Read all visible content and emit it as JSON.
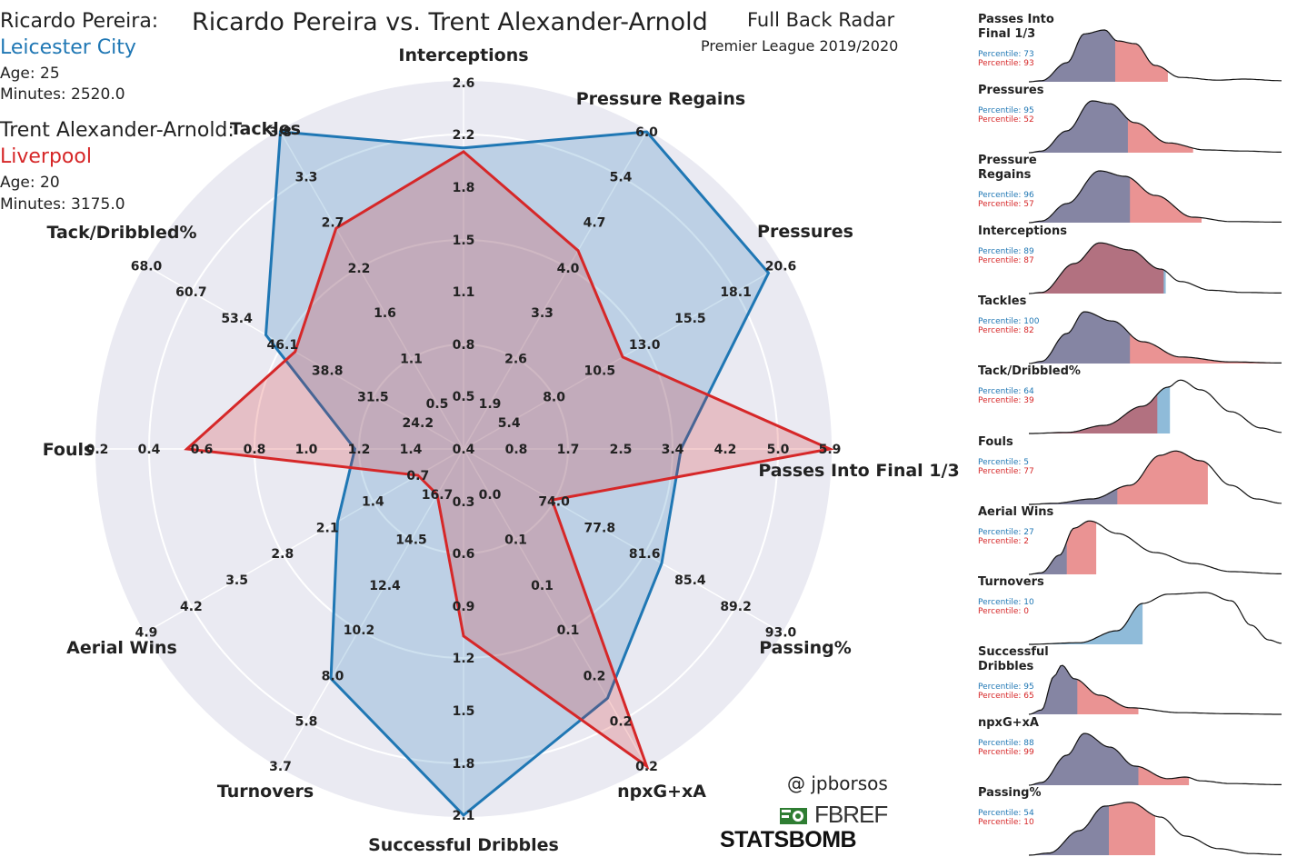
{
  "header": {
    "title": "Ricardo Pereira vs. Trent Alexander-Arnold",
    "subtitle": "Full Back Radar",
    "competition": "Premier League 2019/2020"
  },
  "players": [
    {
      "name": "Ricardo Pereira:",
      "team": "Leicester City",
      "age": "Age: 25",
      "minutes": "Minutes: 2520.0",
      "color": "#1f77b4"
    },
    {
      "name": "Trent Alexander-Arnold:",
      "team": "Liverpool",
      "age": "Age: 20",
      "minutes": "Minutes: 3175.0",
      "color": "#d62728"
    }
  ],
  "credits": {
    "handle": "@ jpborsos",
    "fbref": "FBREF",
    "statsbomb": "STATSBOMB"
  },
  "chart_data": [
    {
      "type": "radar",
      "axes": [
        {
          "label": "Interceptions",
          "ticks": [
            "0.4",
            "0.5",
            "0.8",
            "1.1",
            "1.5",
            "1.8",
            "2.2",
            "2.6"
          ],
          "range": [
            0.1,
            2.6
          ]
        },
        {
          "label": "Pressure Regains",
          "ticks": [
            "1.9",
            "2.6",
            "3.3",
            "4.0",
            "4.7",
            "5.4",
            "6.0"
          ],
          "range": [
            1.2,
            6.0
          ]
        },
        {
          "label": "Pressures",
          "ticks": [
            "5.4",
            "8.0",
            "10.5",
            "13.0",
            "15.5",
            "18.1",
            "20.6"
          ],
          "range": [
            2.9,
            20.6
          ]
        },
        {
          "label": "Passes Into Final 1/3",
          "ticks": [
            "0.8",
            "1.7",
            "2.5",
            "3.4",
            "4.2",
            "5.0",
            "5.9"
          ],
          "range": [
            0.0,
            5.9
          ]
        },
        {
          "label": "Passing%",
          "ticks": [
            "74.0",
            "77.8",
            "81.6",
            "85.4",
            "89.2",
            "93.0"
          ],
          "range": [
            70.2,
            93.0
          ]
        },
        {
          "label": "npxG+xA",
          "ticks": [
            "0.0",
            "0.1",
            "0.1",
            "0.1",
            "0.2",
            "0.2",
            "0.2"
          ],
          "range": [
            0.0,
            0.24
          ]
        },
        {
          "label": "Successful Dribbles",
          "ticks": [
            "0.3",
            "0.6",
            "0.9",
            "1.2",
            "1.5",
            "1.8",
            "2.1"
          ],
          "range": [
            0.0,
            2.1
          ]
        },
        {
          "label": "Turnovers",
          "ticks": [
            "16.7",
            "14.5",
            "12.4",
            "10.2",
            "8.0",
            "5.8",
            "3.7"
          ],
          "range": [
            18.9,
            3.7
          ]
        },
        {
          "label": "Aerial Wins",
          "ticks": [
            "0.7",
            "1.4",
            "2.1",
            "2.8",
            "3.5",
            "4.2",
            "4.9"
          ],
          "range": [
            0.0,
            4.9
          ]
        },
        {
          "label": "Fouls",
          "ticks": [
            "1.4",
            "1.2",
            "1.0",
            "0.8",
            "0.6",
            "0.4",
            "0.2"
          ],
          "range": [
            1.6,
            0.2
          ]
        },
        {
          "label": "Tack/Dribbled%",
          "ticks": [
            "24.2",
            "31.5",
            "38.8",
            "46.1",
            "53.4",
            "60.7",
            "68.0"
          ],
          "range": [
            16.9,
            68.0
          ]
        },
        {
          "label": "Tackles",
          "ticks": [
            "0.5",
            "1.1",
            "1.6",
            "2.2",
            "2.7",
            "3.3",
            "3.8"
          ],
          "range": [
            0.0,
            3.8
          ]
        }
      ],
      "series": [
        {
          "name": "Ricardo Pereira",
          "color": "#1f77b4",
          "values": [
            2.08,
            6.0,
            19.8,
            3.1,
            83.0,
            0.18,
            2.1,
            8.6,
            1.45,
            1.35,
            45.5,
            3.8
          ]
        },
        {
          "name": "Trent Alexander-Arnold",
          "color": "#d62728",
          "values": [
            2.05,
            3.9,
            10.3,
            5.9,
            73.8,
            0.24,
            0.9,
            18.9,
            0.0,
            0.6,
            40.0,
            2.45
          ]
        }
      ]
    },
    {
      "type": "area",
      "panels": [
        {
          "label": "Passes Into\nFinal 1/3",
          "p1": "Percentile: 73",
          "p2": "Percentile: 93"
        },
        {
          "label": "Pressures",
          "p1": "Percentile: 95",
          "p2": "Percentile: 52"
        },
        {
          "label": "Pressure\nRegains",
          "p1": "Percentile: 96",
          "p2": "Percentile: 57"
        },
        {
          "label": "Interceptions",
          "p1": "Percentile: 89",
          "p2": "Percentile: 87"
        },
        {
          "label": "Tackles",
          "p1": "Percentile: 100",
          "p2": "Percentile: 82"
        },
        {
          "label": "Tack/Dribbled%",
          "p1": "Percentile: 64",
          "p2": "Percentile: 39"
        },
        {
          "label": "Fouls",
          "p1": "Percentile: 5",
          "p2": "Percentile: 77"
        },
        {
          "label": "Aerial Wins",
          "p1": "Percentile: 27",
          "p2": "Percentile: 2"
        },
        {
          "label": "Turnovers",
          "p1": "Percentile: 10",
          "p2": "Percentile: 0"
        },
        {
          "label": "Successful\nDribbles",
          "p1": "Percentile: 95",
          "p2": "Percentile: 65"
        },
        {
          "label": "npxG+xA",
          "p1": "Percentile: 88",
          "p2": "Percentile: 99"
        },
        {
          "label": "Passing%",
          "p1": "Percentile: 54",
          "p2": "Percentile: 10"
        }
      ]
    }
  ]
}
